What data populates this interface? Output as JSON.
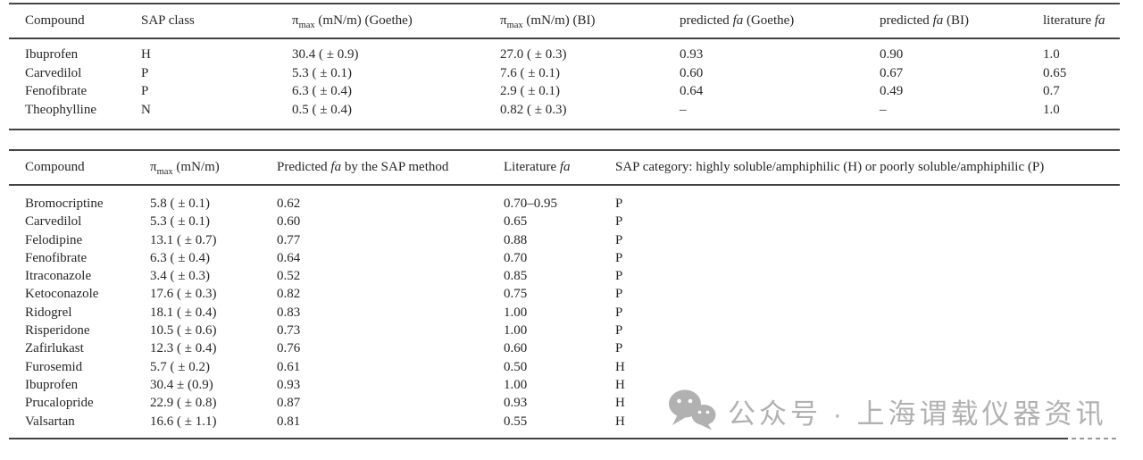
{
  "page": {
    "background": "#ffffff",
    "text_color": "#272727",
    "rule_color": "#424242"
  },
  "tables": [
    {
      "name": "goethe-bi-validation-table",
      "headers": [
        {
          "pre": "Compound",
          "sub": "",
          "italic": "",
          "post": ""
        },
        {
          "pre": "SAP class",
          "sub": "",
          "italic": "",
          "post": ""
        },
        {
          "pre": "π",
          "sub": "max",
          "italic": "",
          "post": " (mN/m) (Goethe)"
        },
        {
          "pre": "π",
          "sub": "max",
          "italic": "",
          "post": " (mN/m) (BI)"
        },
        {
          "pre": "predicted ",
          "sub": "",
          "italic": "fa",
          "post": " (Goethe)"
        },
        {
          "pre": "predicted ",
          "sub": "",
          "italic": "fa",
          "post": " (BI)"
        },
        {
          "pre": "literature ",
          "sub": "",
          "italic": "fa",
          "post": ""
        }
      ],
      "rows": [
        [
          "Ibuprofen",
          "H",
          "30.4 ( ± 0.9)",
          "27.0 ( ± 0.3)",
          "0.93",
          "0.90",
          "1.0"
        ],
        [
          "Carvedilol",
          "P",
          "5.3 ( ± 0.1)",
          "7.6 ( ± 0.1)",
          "0.60",
          "0.67",
          "0.65"
        ],
        [
          "Fenofibrate",
          "P",
          "6.3 ( ± 0.4)",
          "2.9 ( ± 0.1)",
          "0.64",
          "0.49",
          "0.7"
        ],
        [
          "Theophylline",
          "N",
          "0.5 ( ± 0.4)",
          "0.82 ( ± 0.3)",
          "–",
          "–",
          "1.0"
        ]
      ]
    },
    {
      "name": "sap-method-table",
      "headers": [
        {
          "pre": "Compound",
          "sub": "",
          "italic": "",
          "post": ""
        },
        {
          "pre": "π",
          "sub": "max",
          "italic": "",
          "post": " (mN/m)"
        },
        {
          "pre": "Predicted ",
          "sub": "",
          "italic": "fa",
          "post": " by the SAP method"
        },
        {
          "pre": "Literature ",
          "sub": "",
          "italic": "fa",
          "post": ""
        },
        {
          "pre": "SAP category: highly soluble/amphiphilic (H) or poorly soluble/amphiphilic (P)",
          "sub": "",
          "italic": "",
          "post": ""
        }
      ],
      "rows": [
        [
          "Bromocriptine",
          "5.8 ( ± 0.1)",
          "0.62",
          "0.70–0.95",
          "P"
        ],
        [
          "Carvedilol",
          "5.3 ( ± 0.1)",
          "0.60",
          "0.65",
          "P"
        ],
        [
          "Felodipine",
          "13.1 ( ± 0.7)",
          "0.77",
          "0.88",
          "P"
        ],
        [
          "Fenofibrate",
          "6.3 ( ± 0.4)",
          "0.64",
          "0.70",
          "P"
        ],
        [
          "Itraconazole",
          "3.4 ( ± 0.3)",
          "0.52",
          "0.85",
          "P"
        ],
        [
          "Ketoconazole",
          "17.6 ( ± 0.3)",
          "0.82",
          "0.75",
          "P"
        ],
        [
          "Ridogrel",
          "18.1 ( ± 0.4)",
          "0.83",
          "1.00",
          "P"
        ],
        [
          "Risperidone",
          "10.5 ( ± 0.6)",
          "0.73",
          "1.00",
          "P"
        ],
        [
          "Zafirlukast",
          "12.3 ( ± 0.4)",
          "0.76",
          "0.60",
          "P"
        ],
        [
          "Furosemid",
          "5.7 ( ± 0.2)",
          "0.61",
          "0.50",
          "H"
        ],
        [
          "Ibuprofen",
          "30.4 ± (0.9)",
          "0.93",
          "1.00",
          "H"
        ],
        [
          "Prucalopride",
          "22.9 ( ± 0.8)",
          "0.87",
          "0.93",
          "H"
        ],
        [
          "Valsartan",
          "16.6 ( ± 1.1)",
          "0.81",
          "0.55",
          "H"
        ]
      ]
    }
  ],
  "watermark": {
    "icon": "wechat-icon",
    "text": "公众号 · 上海谓载仪器资讯",
    "color": "#b1b1b1"
  }
}
